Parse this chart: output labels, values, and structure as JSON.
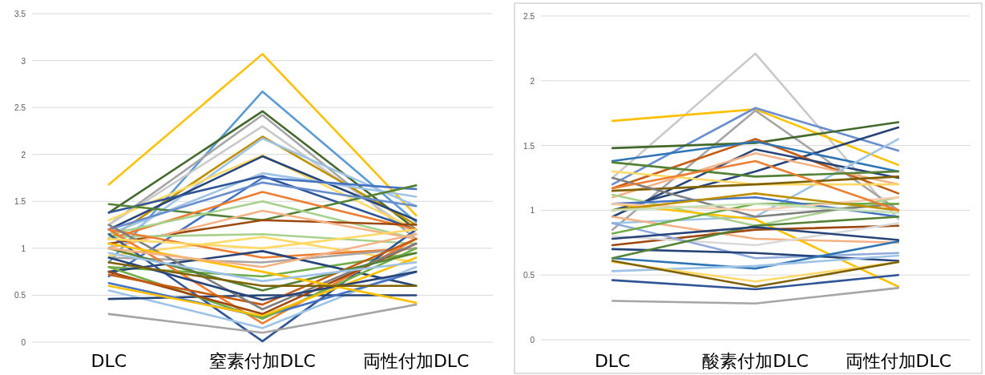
{
  "chart_data": [
    {
      "type": "line",
      "categories": [
        "DLC",
        "窒素付加DLC",
        "両性付加DLC"
      ],
      "ylim": [
        0,
        3.5
      ],
      "yticks": [
        0,
        0.5,
        1,
        1.5,
        2,
        2.5,
        3,
        3.5
      ],
      "grid": "y",
      "marker": "none",
      "line_style": "solid",
      "series": [
        {
          "color": "#ffc000",
          "values": [
            1.68,
            3.07,
            1.35
          ]
        },
        {
          "color": "#5b9bd5",
          "values": [
            0.85,
            2.67,
            1.28
          ]
        },
        {
          "color": "#43682b",
          "values": [
            1.38,
            2.46,
            1.2
          ]
        },
        {
          "color": "#a5a5a5",
          "values": [
            1.25,
            2.42,
            1.1
          ]
        },
        {
          "color": "#c9c9c9",
          "values": [
            1.25,
            2.3,
            1.15
          ]
        },
        {
          "color": "#bf9000",
          "values": [
            1.1,
            2.19,
            1.25
          ]
        },
        {
          "color": "#9dc3e6",
          "values": [
            1.0,
            2.17,
            1.45
          ]
        },
        {
          "color": "#ffd966",
          "values": [
            1.3,
            1.99,
            1.2
          ]
        },
        {
          "color": "#264478",
          "values": [
            1.2,
            1.98,
            1.3
          ]
        },
        {
          "color": "#9dc3e6",
          "values": [
            1.15,
            1.8,
            1.55
          ]
        },
        {
          "color": "#2f5597",
          "values": [
            1.38,
            1.77,
            1.2
          ]
        },
        {
          "color": "#4472c4",
          "values": [
            0.7,
            1.75,
            1.63
          ]
        },
        {
          "color": "#548235",
          "values": [
            1.47,
            1.3,
            1.67
          ]
        },
        {
          "color": "#698ed0",
          "values": [
            1.2,
            1.7,
            1.45
          ]
        },
        {
          "color": "#ed7d31",
          "values": [
            1.1,
            1.6,
            1.2
          ]
        },
        {
          "color": "#a9d18e",
          "values": [
            1.15,
            1.5,
            1.1
          ]
        },
        {
          "color": "#9e480e",
          "values": [
            1.05,
            1.3,
            1.25
          ]
        },
        {
          "color": "#f4b183",
          "values": [
            1.0,
            1.4,
            1.1
          ]
        },
        {
          "color": "#ffd966",
          "values": [
            0.92,
            1.12,
            0.85
          ]
        },
        {
          "color": "#a9d18e",
          "values": [
            1.12,
            1.15,
            1.05
          ]
        },
        {
          "color": "#ed7d31",
          "values": [
            1.2,
            0.9,
            1.0
          ]
        },
        {
          "color": "#a5a5a5",
          "values": [
            0.9,
            0.85,
            1.0
          ]
        },
        {
          "color": "#70ad47",
          "values": [
            0.8,
            0.7,
            0.95
          ]
        },
        {
          "color": "#264478",
          "values": [
            0.75,
            0.97,
            0.6
          ]
        },
        {
          "color": "#2f5597",
          "values": [
            1.15,
            0.01,
            1.2
          ]
        },
        {
          "color": "#a5a5a5",
          "values": [
            0.3,
            0.1,
            0.4
          ]
        },
        {
          "color": "#9dc3e6",
          "values": [
            0.55,
            0.15,
            0.8
          ]
        },
        {
          "color": "#ed7d31",
          "values": [
            1.2,
            0.2,
            1.1
          ]
        },
        {
          "color": "#264478",
          "values": [
            0.46,
            0.5,
            0.5
          ]
        },
        {
          "color": "#4472c4",
          "values": [
            0.63,
            0.27,
            0.75
          ]
        },
        {
          "color": "#70ad47",
          "values": [
            0.8,
            0.25,
            1.0
          ]
        },
        {
          "color": "#9e480e",
          "values": [
            0.75,
            0.3,
            1.05
          ]
        },
        {
          "color": "#ffc000",
          "values": [
            0.6,
            0.28,
            0.9
          ]
        },
        {
          "color": "#c55a11",
          "values": [
            0.72,
            0.4,
            1.1
          ]
        },
        {
          "color": "#7f7f7f",
          "values": [
            1.25,
            0.35,
            1.05
          ]
        },
        {
          "color": "#264478",
          "values": [
            0.9,
            0.45,
            0.75
          ]
        },
        {
          "color": "#548235",
          "values": [
            1.0,
            0.55,
            0.95
          ]
        },
        {
          "color": "#ffc000",
          "values": [
            1.05,
            0.75,
            0.42
          ]
        },
        {
          "color": "#7f6000",
          "values": [
            0.85,
            0.6,
            0.6
          ]
        },
        {
          "color": "#9dc3e6",
          "values": [
            0.95,
            0.65,
            0.85
          ]
        },
        {
          "color": "#f4b183",
          "values": [
            1.0,
            0.8,
            1.15
          ]
        },
        {
          "color": "#ffd966",
          "values": [
            1.1,
            1.0,
            1.2
          ]
        }
      ]
    },
    {
      "type": "line",
      "categories": [
        "DLC",
        "酸素付加DLC",
        "両性付加DLC"
      ],
      "ylim": [
        0,
        2.5
      ],
      "yticks": [
        0,
        0.5,
        1,
        1.5,
        2,
        2.5
      ],
      "grid": "y",
      "marker": "none",
      "line_style": "solid",
      "series": [
        {
          "color": "#c9c9c9",
          "values": [
            1.25,
            2.21,
            0.93
          ]
        },
        {
          "color": "#ffc000",
          "values": [
            1.69,
            1.78,
            1.35
          ]
        },
        {
          "color": "#698ed0",
          "values": [
            1.2,
            1.79,
            1.46
          ]
        },
        {
          "color": "#a5a5a5",
          "values": [
            0.85,
            1.77,
            1.0
          ]
        },
        {
          "color": "#43682b",
          "values": [
            1.48,
            1.52,
            1.68
          ]
        },
        {
          "color": "#264478",
          "values": [
            1.0,
            1.3,
            1.64
          ]
        },
        {
          "color": "#c55a11",
          "values": [
            1.17,
            1.55,
            1.13
          ]
        },
        {
          "color": "#2e75b6",
          "values": [
            1.38,
            1.53,
            1.3
          ]
        },
        {
          "color": "#264478",
          "values": [
            0.95,
            1.47,
            1.25
          ]
        },
        {
          "color": "#f4b183",
          "values": [
            1.1,
            1.44,
            1.2
          ]
        },
        {
          "color": "#9dc3e6",
          "values": [
            0.9,
            0.95,
            1.55
          ]
        },
        {
          "color": "#548235",
          "values": [
            1.37,
            1.26,
            1.3
          ]
        },
        {
          "color": "#ffd966",
          "values": [
            1.3,
            1.2,
            1.2
          ]
        },
        {
          "color": "#7f6000",
          "values": [
            1.15,
            1.2,
            1.26
          ]
        },
        {
          "color": "#a9d18e",
          "values": [
            1.12,
            0.88,
            1.1
          ]
        },
        {
          "color": "#7f7f7f",
          "values": [
            1.25,
            0.95,
            1.05
          ]
        },
        {
          "color": "#f4b183",
          "values": [
            0.95,
            0.78,
            0.75
          ]
        },
        {
          "color": "#9e480e",
          "values": [
            0.73,
            0.85,
            0.88
          ]
        },
        {
          "color": "#ffc000",
          "values": [
            1.05,
            0.93,
            0.41
          ]
        },
        {
          "color": "#d9d9d9",
          "values": [
            0.8,
            0.73,
            0.9
          ]
        },
        {
          "color": "#8faadc",
          "values": [
            0.9,
            0.63,
            0.67
          ]
        },
        {
          "color": "#264478",
          "values": [
            0.7,
            0.67,
            0.61
          ]
        },
        {
          "color": "#2e75b6",
          "values": [
            0.63,
            0.55,
            0.76
          ]
        },
        {
          "color": "#9dc3e6",
          "values": [
            0.53,
            0.57,
            0.65
          ]
        },
        {
          "color": "#ffd966",
          "values": [
            0.6,
            0.45,
            0.6
          ]
        },
        {
          "color": "#7f6000",
          "values": [
            0.61,
            0.41,
            0.6
          ]
        },
        {
          "color": "#2f5597",
          "values": [
            0.46,
            0.39,
            0.5
          ]
        },
        {
          "color": "#a5a5a5",
          "values": [
            0.3,
            0.28,
            0.4
          ]
        },
        {
          "color": "#70ad47",
          "values": [
            0.82,
            1.05,
            1.05
          ]
        },
        {
          "color": "#4472c4",
          "values": [
            1.05,
            1.1,
            0.95
          ]
        },
        {
          "color": "#f8cbad",
          "values": [
            1.05,
            1.0,
            1.1
          ]
        },
        {
          "color": "#548235",
          "values": [
            0.63,
            0.88,
            0.95
          ]
        },
        {
          "color": "#264478",
          "values": [
            0.78,
            0.87,
            0.77
          ]
        },
        {
          "color": "#bf9000",
          "values": [
            1.0,
            1.13,
            1.0
          ]
        },
        {
          "color": "#c5e0b4",
          "values": [
            1.0,
            1.05,
            0.98
          ]
        },
        {
          "color": "#ed7d31",
          "values": [
            1.17,
            1.38,
            1.0
          ]
        }
      ]
    }
  ]
}
